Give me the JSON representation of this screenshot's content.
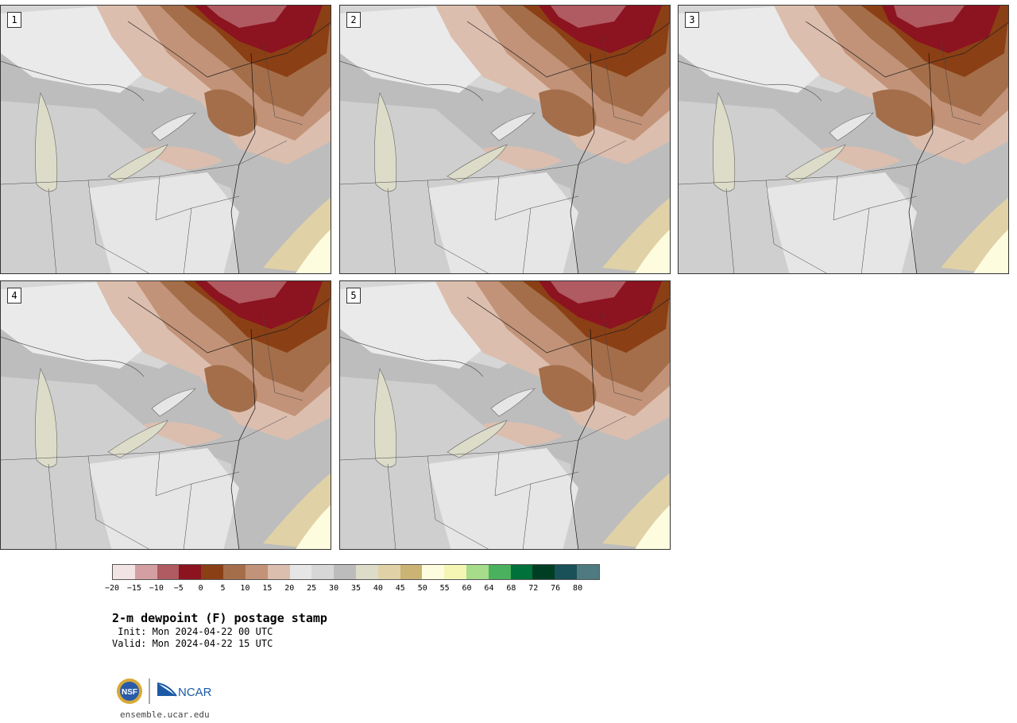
{
  "panels": [
    {
      "label": "1"
    },
    {
      "label": "2"
    },
    {
      "label": "3"
    },
    {
      "label": "4"
    },
    {
      "label": "5"
    }
  ],
  "colorbar": {
    "colors": [
      "#f2e4e4",
      "#d49fa2",
      "#b05a62",
      "#8c1320",
      "#8b3f14",
      "#a46e4a",
      "#c29378",
      "#dcbeae",
      "#e6e6e6",
      "#d7d7d7",
      "#bcbcbc",
      "#dcdcc9",
      "#e0d1a7",
      "#cbb373",
      "#fefcdf",
      "#f5f6b3",
      "#a6dc8a",
      "#4ab15e",
      "#00713a",
      "#003e23",
      "#1a5058",
      "#4f7a80"
    ],
    "ticks": [
      "−20",
      "−15",
      "−10",
      "−5",
      "0",
      "5",
      "10",
      "15",
      "20",
      "25",
      "30",
      "35",
      "40",
      "45",
      "50",
      "55",
      "60",
      "64",
      "68",
      "72",
      "76",
      "80"
    ]
  },
  "title": "2-m dewpoint (F) postage stamp",
  "init_text": " Init: Mon 2024-04-22 00 UTC",
  "valid_text": "Valid: Mon 2024-04-22 15 UTC",
  "logo": {
    "nsf": "NSF",
    "ncar": "NCAR"
  },
  "url": "ensemble.ucar.edu"
}
